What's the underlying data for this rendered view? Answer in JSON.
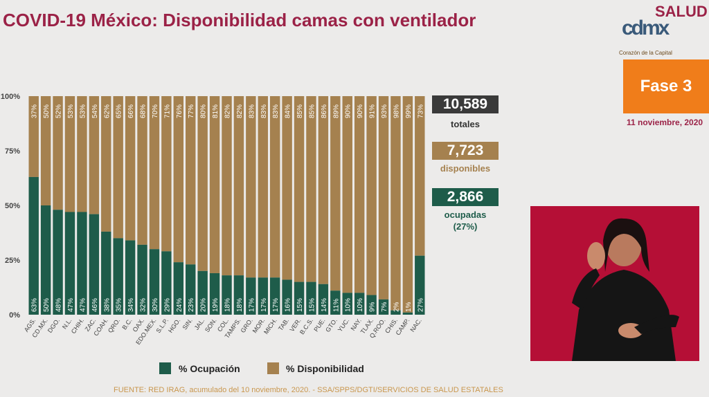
{
  "page": {
    "title": "COVID-19 México: Disponibilidad camas con ventilador",
    "logo_text": "SALUD",
    "logo_mark": "cdmx",
    "logo_subtitle": "Corazón de la Capital",
    "phase": "Fase 3",
    "date": "11 noviembre, 2020",
    "source": "FUENTE: RED IRAG, acumulado del 10 noviembre, 2020. -  SSA/SPPS/DGTI/SERVICIOS DE SALUD ESTATALES"
  },
  "stats": {
    "total_value": "10,589",
    "total_label": "totales",
    "available_value": "7,723",
    "available_label": "disponibles",
    "occupied_value": "2,866",
    "occupied_label_1": "ocupadas",
    "occupied_label_2": "(27%)"
  },
  "colors": {
    "ocupacion": "#1e5c4a",
    "disponibilidad": "#a5814f",
    "title": "#9b2247",
    "total_box": "#3a3a3a",
    "phase": "#f07d1a",
    "video_bg": "#b50f36"
  },
  "chart_data": {
    "type": "bar",
    "stacked": true,
    "categories": [
      "AGS.",
      "CD.MX.",
      "DGO.",
      "N.L.",
      "CHIH.",
      "ZAC.",
      "COAH.",
      "QRO.",
      "B.C.",
      "OAX.",
      "EDO.MEX.",
      "S.L.P.",
      "HGO.",
      "SIN.",
      "JAL.",
      "SON.",
      "COL.",
      "TAMPS.",
      "GRO.",
      "MOR.",
      "MICH.",
      "TAB.",
      "VER.",
      "B.C.S.",
      "PUE.",
      "GTO.",
      "YUC.",
      "NAY.",
      "TLAX.",
      "Q.ROO.",
      "CHIS.",
      "CAMP.",
      "NAC."
    ],
    "series": [
      {
        "name": "% Ocupación",
        "values": [
          63,
          50,
          48,
          47,
          47,
          46,
          38,
          35,
          34,
          32,
          30,
          29,
          24,
          23,
          20,
          19,
          18,
          18,
          17,
          17,
          17,
          16,
          15,
          15,
          14,
          11,
          10,
          10,
          9,
          7,
          2,
          1,
          27
        ]
      },
      {
        "name": "% Disponibilidad",
        "values": [
          37,
          50,
          52,
          53,
          53,
          54,
          62,
          65,
          66,
          68,
          70,
          71,
          76,
          77,
          80,
          81,
          82,
          82,
          83,
          83,
          83,
          84,
          85,
          85,
          86,
          89,
          90,
          90,
          91,
          93,
          98,
          99,
          73
        ]
      }
    ],
    "yticks": [
      "0%",
      "25%",
      "50%",
      "75%",
      "100%"
    ],
    "ylim": [
      0,
      100
    ],
    "legend_position": "bottom"
  }
}
